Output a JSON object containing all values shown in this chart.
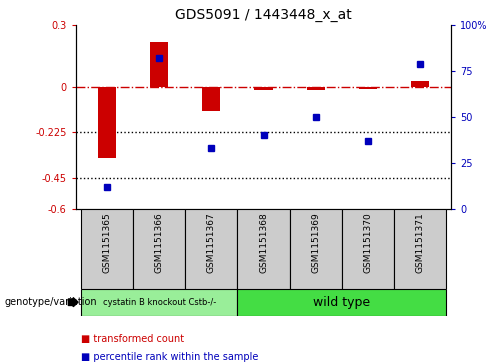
{
  "title": "GDS5091 / 1443448_x_at",
  "samples": [
    "GSM1151365",
    "GSM1151366",
    "GSM1151367",
    "GSM1151368",
    "GSM1151369",
    "GSM1151370",
    "GSM1151371"
  ],
  "red_values": [
    -0.35,
    0.22,
    -0.12,
    -0.015,
    -0.015,
    -0.01,
    0.025
  ],
  "blue_values_pct": [
    12,
    82,
    33,
    40,
    50,
    37,
    79
  ],
  "ylim_left": [
    -0.6,
    0.3
  ],
  "ylim_right": [
    0,
    100
  ],
  "yticks_left": [
    -0.6,
    -0.45,
    -0.225,
    0,
    0.3
  ],
  "ytick_labels_left": [
    "-0.6",
    "-0.45",
    "-0.225",
    "0",
    "0.3"
  ],
  "yticks_right": [
    0,
    25,
    50,
    75,
    100
  ],
  "ytick_labels_right": [
    "0",
    "25",
    "50",
    "75",
    "100%"
  ],
  "hlines": [
    -0.225,
    -0.45
  ],
  "ref_line": 0.0,
  "group1_label": "cystatin B knockout Cstb-/-",
  "group2_label": "wild type",
  "group1_samples": 3,
  "group2_samples": 4,
  "genotype_label": "genotype/variation",
  "legend1": "transformed count",
  "legend2": "percentile rank within the sample",
  "red_color": "#cc0000",
  "blue_color": "#0000bb",
  "group1_color": "#99ee99",
  "group2_color": "#44dd44",
  "sample_box_color": "#cccccc",
  "bar_width": 0.35,
  "marker_size": 5
}
